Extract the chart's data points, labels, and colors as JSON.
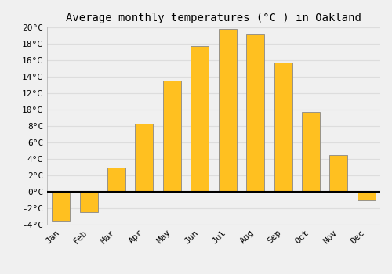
{
  "title": "Average monthly temperatures (°C ) in Oakland",
  "months": [
    "Jan",
    "Feb",
    "Mar",
    "Apr",
    "May",
    "Jun",
    "Jul",
    "Aug",
    "Sep",
    "Oct",
    "Nov",
    "Dec"
  ],
  "values": [
    -3.5,
    -2.5,
    3.0,
    8.3,
    13.5,
    17.7,
    19.8,
    19.1,
    15.7,
    9.7,
    4.5,
    -1.0
  ],
  "bar_color": "#FFC020",
  "bar_edge_color": "#888888",
  "background_color": "#F0F0F0",
  "grid_color": "#DDDDDD",
  "ylim": [
    -4,
    20
  ],
  "yticks": [
    -4,
    -2,
    0,
    2,
    4,
    6,
    8,
    10,
    12,
    14,
    16,
    18,
    20
  ],
  "ytick_labels": [
    "-4°C",
    "-2°C",
    "0°C",
    "2°C",
    "4°C",
    "6°C",
    "8°C",
    "10°C",
    "12°C",
    "14°C",
    "16°C",
    "18°C",
    "20°C"
  ],
  "title_fontsize": 10,
  "tick_fontsize": 8
}
